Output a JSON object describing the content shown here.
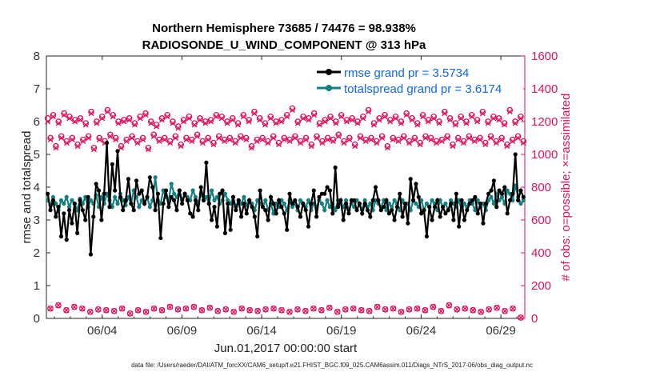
{
  "chart_data": {
    "type": "line",
    "title": "Northern Hemisphere 73685 / 74476 = 98.938%",
    "subtitle": "RADIOSONDE_U_WIND_COMPONENT @ 313 hPa",
    "xlabel": "Jun.01,2017 00:00:00 start",
    "ylabel": "rmse and totalspread",
    "y2label": "# of obs: o=possible; ×=assimilated",
    "footnote": "data file: /Users/raeder/DAI/ATM_forcXX/CAM6_setup/f.e21.FHIST_BGC.f09_025.CAM6assim.011/Diags_NTrS_2017-06/obs_diag_output.nc",
    "xlim": [
      0.5,
      30.5
    ],
    "ylim": [
      0,
      8
    ],
    "y2lim": [
      0,
      1600
    ],
    "x_ticks": [
      4,
      9,
      14,
      19,
      24,
      29
    ],
    "x_tick_labels": [
      "06/04",
      "06/09",
      "06/14",
      "06/19",
      "06/24",
      "06/29"
    ],
    "y_ticks": [
      "0",
      "1",
      "2",
      "3",
      "4",
      "5",
      "6",
      "7",
      "8"
    ],
    "y2_ticks": [
      "0",
      "200",
      "400",
      "600",
      "800",
      "1000",
      "1200",
      "1400",
      "1600"
    ],
    "colors": {
      "rmse": "#000000",
      "spread": "#148080",
      "obs": "#e0115f",
      "legend_text": "#1166ee"
    },
    "series": [
      {
        "name": "rmse grand pr = 3.5734",
        "axis": "left",
        "values": [
          3.8,
          3.3,
          3.6,
          3.1,
          3.4,
          2.5,
          3.2,
          2.4,
          3.3,
          2.9,
          3.5,
          2.6,
          3.6,
          3.3,
          3.0,
          3.7,
          1.95,
          3.1,
          4.1,
          3.9,
          3.0,
          3.8,
          5.35,
          3.4,
          4.7,
          3.9,
          5.1,
          3.7,
          3.3,
          3.6,
          4.25,
          3.5,
          3.3,
          4.2,
          3.8,
          3.9,
          3.5,
          3.7,
          4.3,
          4.0,
          3.3,
          3.8,
          2.45,
          3.5,
          3.9,
          3.4,
          3.7,
          3.6,
          3.3,
          3.9,
          3.5,
          3.8,
          3.6,
          3.2,
          3.1,
          3.6,
          3.3,
          4.0,
          3.6,
          4.75,
          3.5,
          3.0,
          3.4,
          2.8,
          3.8,
          3.9,
          2.6,
          3.5,
          2.7,
          3.7,
          3.3,
          3.6,
          3.1,
          3.5,
          3.2,
          3.6,
          3.4,
          3.1,
          2.5,
          3.9,
          3.4,
          3.3,
          3.0,
          3.7,
          3.5,
          3.2,
          3.6,
          3.4,
          3.2,
          2.7,
          3.8,
          3.5,
          3.6,
          3.4,
          3.1,
          3.5,
          3.3,
          2.8,
          3.5,
          3.9,
          3.1,
          3.7,
          3.8,
          3.8,
          4.0,
          3.9,
          3.2,
          4.6,
          3.4,
          3.6,
          3.0,
          3.5,
          3.2,
          3.6,
          3.6,
          3.3,
          3.5,
          3.2,
          3.5,
          3.3,
          3.1,
          3.6,
          4.0,
          3.6,
          3.3,
          3.4,
          3.6,
          3.2,
          3.3,
          3.0,
          3.4,
          3.8,
          3.1,
          3.5,
          2.9,
          4.25,
          3.6,
          4.1,
          3.7,
          3.2,
          3.3,
          2.5,
          3.4,
          3.0,
          3.4,
          3.6,
          3.1,
          3.4,
          3.2,
          3.3,
          3.5,
          3.0,
          3.8,
          2.8,
          3.6,
          3.0,
          3.3,
          3.5,
          3.6,
          3.7,
          3.2,
          3.5,
          2.9,
          3.5,
          3.8,
          3.9,
          4.2,
          3.4,
          3.9,
          3.8,
          4.0,
          3.2,
          3.6,
          3.8,
          5.0,
          3.6,
          3.9,
          3.7
        ]
      },
      {
        "name": "totalspread grand pr = 3.6174",
        "axis": "left",
        "values": [
          3.6,
          3.45,
          3.7,
          3.5,
          3.3,
          3.6,
          3.5,
          3.7,
          3.4,
          3.6,
          3.5,
          3.3,
          3.65,
          3.5,
          3.7,
          3.4,
          3.6,
          3.5,
          3.75,
          3.4,
          3.7,
          3.5,
          3.8,
          3.6,
          3.4,
          3.7,
          3.5,
          3.8,
          3.6,
          3.45,
          3.7,
          3.5,
          3.9,
          3.7,
          3.4,
          3.6,
          3.5,
          3.7,
          3.4,
          3.6,
          4.3,
          3.6,
          3.5,
          3.9,
          3.7,
          3.6,
          4.1,
          3.8,
          3.7,
          3.9,
          3.6,
          3.8,
          3.7,
          3.6,
          3.9,
          3.7,
          3.5,
          3.8,
          3.6,
          3.7,
          3.5,
          3.9,
          3.6,
          3.7,
          3.5,
          3.6,
          3.8,
          3.6,
          3.5,
          3.7,
          3.4,
          3.6,
          3.5,
          3.7,
          3.45,
          3.6,
          3.5,
          3.3,
          3.6,
          3.5,
          3.4,
          3.6,
          3.3,
          3.5,
          3.2,
          3.5,
          3.4,
          3.6,
          3.5,
          3.3,
          3.6,
          3.4,
          3.5,
          3.3,
          3.6,
          3.5,
          3.4,
          3.6,
          3.3,
          3.5,
          3.4,
          3.6,
          3.5,
          3.3,
          3.6,
          3.4,
          3.5,
          3.3,
          3.6,
          3.5,
          3.4,
          3.6,
          3.3,
          3.5,
          3.4,
          3.6,
          3.5,
          3.3,
          3.6,
          3.4,
          3.5,
          3.3,
          3.6,
          3.5,
          3.4,
          3.6,
          3.3,
          3.5,
          3.4,
          3.6,
          3.5,
          3.3,
          3.6,
          3.4,
          3.5,
          3.3,
          3.6,
          3.5,
          3.4,
          3.6,
          3.3,
          3.5,
          3.4,
          3.6,
          3.5,
          3.3,
          3.6,
          3.4,
          3.5,
          3.3,
          3.6,
          3.5,
          3.4,
          3.6,
          3.3,
          3.5,
          3.4,
          3.6,
          3.5,
          3.3,
          3.6,
          3.4,
          3.5,
          3.3,
          3.6,
          3.7,
          3.5,
          3.8,
          3.6,
          3.7,
          3.5,
          3.9,
          3.8,
          3.6,
          4.05,
          3.7,
          3.5,
          3.6
        ]
      },
      {
        "name": "obs possible (o)",
        "axis": "right",
        "values": [
          1220,
          1100,
          1240,
          1050,
          1200,
          1110,
          1250,
          1080,
          1230,
          1100,
          1210,
          1060,
          1220,
          1090,
          1190,
          1110,
          1260,
          1040,
          1200,
          1100,
          1230,
          1080,
          1270,
          1120,
          1240,
          1100,
          1200,
          1050,
          1210,
          1090,
          1220,
          1110,
          1190,
          1080,
          1230,
          1100,
          1250,
          1040,
          1200,
          1120,
          1180,
          1090,
          1220,
          1100,
          1240,
          1080,
          1200,
          1110,
          1170,
          1060,
          1210,
          1100,
          1230,
          1090,
          1190,
          1120,
          1220,
          1080,
          1200,
          1100,
          1210,
          1070,
          1240,
          1110,
          1230,
          1090,
          1200,
          1100,
          1220,
          1080,
          1190,
          1110,
          1240,
          1100,
          1210,
          1050,
          1260,
          1090,
          1220,
          1100,
          1190,
          1080,
          1230,
          1110,
          1200,
          1070,
          1210,
          1100,
          1240,
          1090,
          1280,
          1110,
          1200,
          1080,
          1230,
          1100,
          1220,
          1060,
          1250,
          1110,
          1190,
          1080,
          1210,
          1100,
          1230,
          1090,
          1200,
          1120,
          1240,
          1080,
          1210,
          1100,
          1220,
          1060,
          1200,
          1110,
          1230,
          1090,
          1270,
          1100,
          1190,
          1080,
          1220,
          1110,
          1240,
          1050,
          1210,
          1100,
          1230,
          1090,
          1200,
          1110,
          1250,
          1080,
          1220,
          1100,
          1190,
          1070,
          1240,
          1110,
          1210,
          1100,
          1230,
          1080,
          1200,
          1090,
          1260,
          1110,
          1220,
          1060,
          1190,
          1100,
          1230,
          1080,
          1200,
          1110,
          1240,
          1090,
          1210,
          1100,
          1260,
          1070,
          1200,
          1110,
          1230,
          1080,
          1220,
          1100,
          1190,
          1060,
          1270,
          1090,
          1200,
          1110,
          1230,
          1080
        ]
      },
      {
        "name": "obs assimilated (×)",
        "axis": "right",
        "values": [
          1200,
          1090,
          1230,
          1040,
          1190,
          1100,
          1240,
          1070,
          1220,
          1090,
          1200,
          1050,
          1210,
          1080,
          1180,
          1100,
          1250,
          1030,
          1190,
          1090,
          1220,
          1070,
          1260,
          1110,
          1230,
          1090,
          1190,
          1040,
          1200,
          1080,
          1210,
          1100,
          1180,
          1070,
          1220,
          1090,
          1240,
          1030,
          1190,
          1110,
          1170,
          1080,
          1210,
          1090,
          1230,
          1070,
          1190,
          1100,
          1160,
          1050,
          1200,
          1090,
          1220,
          1080,
          1180,
          1110,
          1210,
          1070,
          1190,
          1090,
          1200,
          1060,
          1230,
          1100,
          1220,
          1080,
          1190,
          1090,
          1210,
          1070,
          1180,
          1100,
          1230,
          1090,
          1200,
          1040,
          1250,
          1080,
          1210,
          1090,
          1180,
          1070,
          1220,
          1100,
          1190,
          1060,
          1200,
          1090,
          1230,
          1080,
          1270,
          1100,
          1190,
          1070,
          1220,
          1090,
          1210,
          1050,
          1240,
          1100,
          1180,
          1070,
          1200,
          1090,
          1220,
          1080,
          1190,
          1110,
          1230,
          1070,
          1200,
          1090,
          1210,
          1050,
          1190,
          1100,
          1220,
          1080,
          1260,
          1090,
          1180,
          1070,
          1210,
          1100,
          1230,
          1040,
          1200,
          1090,
          1220,
          1080,
          1190,
          1100,
          1240,
          1070,
          1210,
          1090,
          1180,
          1060,
          1230,
          1100,
          1200,
          1090,
          1220,
          1070,
          1190,
          1080,
          1250,
          1100,
          1210,
          1050,
          1180,
          1090,
          1220,
          1070,
          1190,
          1100,
          1230,
          1080,
          1200,
          1090,
          1250,
          1060,
          1190,
          1100,
          1220,
          1070,
          1210,
          1090,
          1180,
          1050,
          1260,
          1080,
          1190,
          1100,
          1220,
          1070
        ]
      },
      {
        "name": "obs possible low (o)",
        "axis": "right",
        "values": [
          60,
          80,
          50,
          70,
          60,
          40,
          55,
          50,
          45,
          60,
          30,
          50,
          40,
          60,
          50,
          70,
          55,
          60,
          70,
          50,
          65,
          45,
          55,
          40,
          60,
          50,
          45,
          55,
          60,
          50,
          40,
          55,
          45,
          60,
          50,
          65,
          40,
          55,
          60,
          50,
          45,
          70,
          55,
          60,
          40,
          55,
          60,
          50,
          70,
          45,
          80,
          55,
          60,
          50,
          40,
          55,
          65,
          45,
          60,
          5
        ]
      }
    ],
    "legend": [
      "rmse grand pr = 3.5734",
      "totalspread grand pr = 3.6174"
    ]
  }
}
